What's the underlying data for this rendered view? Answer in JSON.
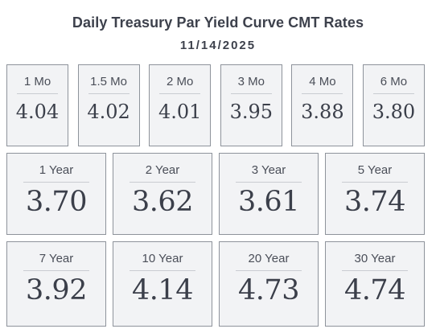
{
  "header": {
    "title": "Daily Treasury Par Yield Curve CMT Rates",
    "date": "11/14/2025"
  },
  "rates": {
    "row1": [
      {
        "term": "1 Mo",
        "rate": "4.04"
      },
      {
        "term": "1.5 Mo",
        "rate": "4.02"
      },
      {
        "term": "2 Mo",
        "rate": "4.01"
      },
      {
        "term": "3 Mo",
        "rate": "3.95"
      },
      {
        "term": "4 Mo",
        "rate": "3.88"
      },
      {
        "term": "6 Mo",
        "rate": "3.80"
      }
    ],
    "row2": [
      {
        "term": "1 Year",
        "rate": "3.70"
      },
      {
        "term": "2 Year",
        "rate": "3.62"
      },
      {
        "term": "3 Year",
        "rate": "3.61"
      },
      {
        "term": "5 Year",
        "rate": "3.74"
      }
    ],
    "row3": [
      {
        "term": "7 Year",
        "rate": "3.92"
      },
      {
        "term": "10 Year",
        "rate": "4.14"
      },
      {
        "term": "20 Year",
        "rate": "4.73"
      },
      {
        "term": "30 Year",
        "rate": "4.74"
      }
    ]
  },
  "colors": {
    "tile_background": "#f2f3f5",
    "tile_border": "#8e939b",
    "text": "#3b3f4a"
  }
}
